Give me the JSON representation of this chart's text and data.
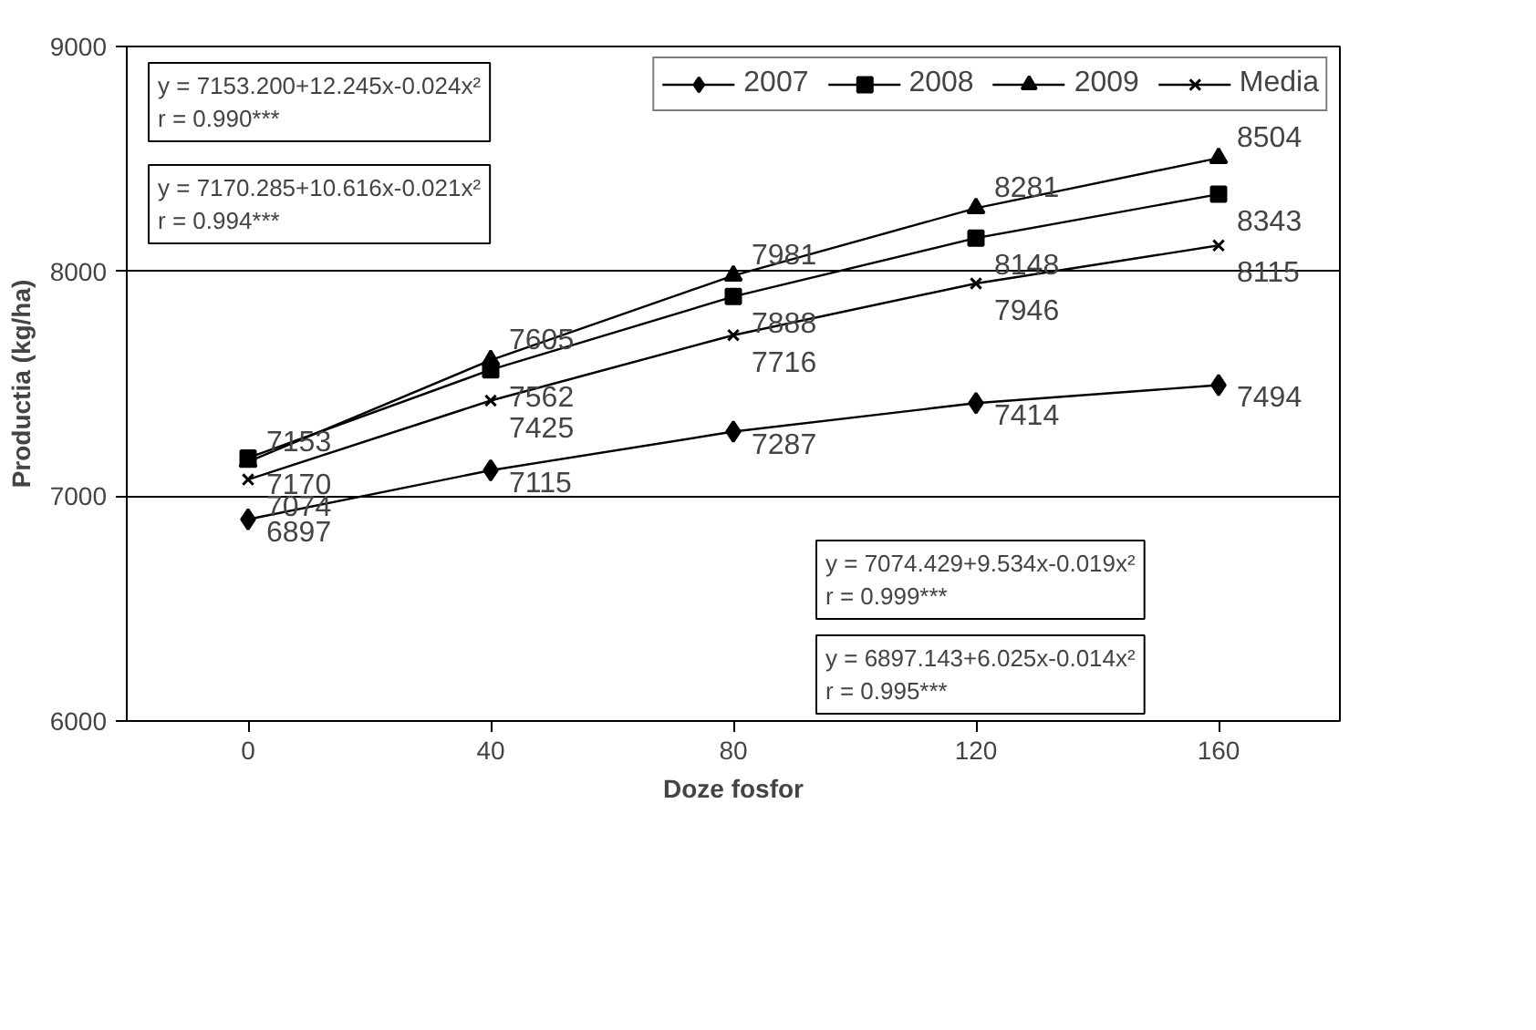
{
  "chart_data": {
    "type": "line",
    "xlabel": "Doze fosfor",
    "ylabel": "Productia (kg/ha)",
    "categories": [
      "0",
      "40",
      "80",
      "120",
      "160"
    ],
    "series": [
      {
        "name": "2007",
        "color": "#000000",
        "marker": "diamond",
        "values": [
          6897,
          7115,
          7287,
          7414,
          7494
        ]
      },
      {
        "name": "2008",
        "color": "#000000",
        "marker": "square",
        "values": [
          7170,
          7562,
          7888,
          8148,
          8343
        ]
      },
      {
        "name": "2009",
        "color": "#000000",
        "marker": "triangle",
        "values": [
          7153,
          7605,
          7981,
          8281,
          8504
        ]
      },
      {
        "name": "Media",
        "color": "#000000",
        "marker": "cross",
        "values": [
          7074,
          7425,
          7716,
          7946,
          8115
        ]
      }
    ],
    "ylim": [
      6000,
      9000
    ],
    "yticks": [
      6000,
      7000,
      8000,
      9000
    ],
    "grid": "y",
    "legend": "top right",
    "data_labels": true,
    "line_style": "solid",
    "annotations": [
      "y = 7153.200+12.245x-0.024x²\nr = 0.990***",
      "y = 7170.285+10.616x-0.021x²\nr = 0.994***",
      "y = 7074.429+9.534x-0.019x²\nr = 0.999***",
      "y = 6897.143+6.025x-0.014x²\nr = 0.995***"
    ]
  }
}
